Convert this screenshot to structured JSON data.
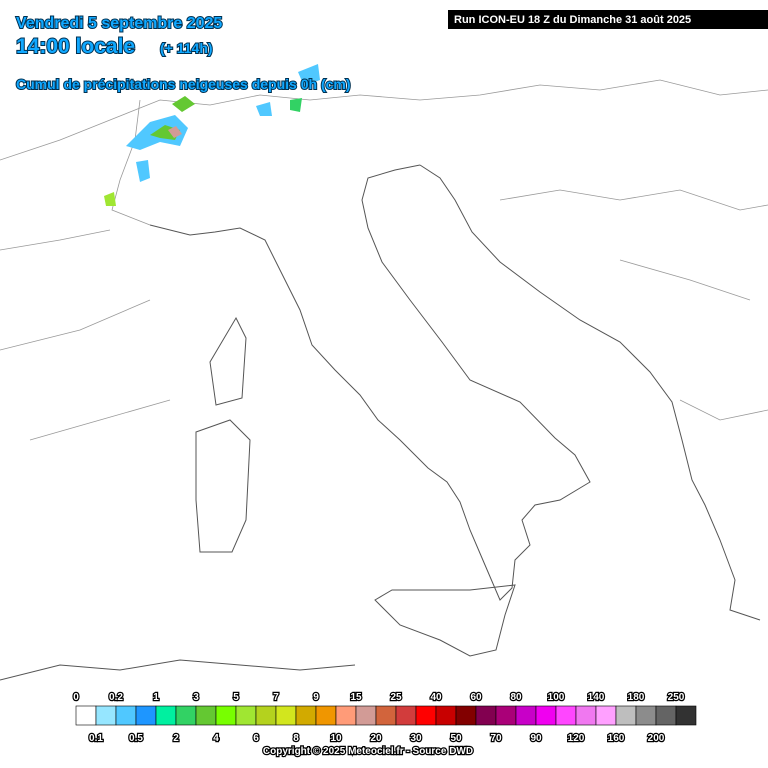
{
  "header": {
    "date": "Vendredi 5 septembre 2025",
    "time": "14:00 locale",
    "lead": "(+ 114h)",
    "field": "Cumul de précipitations neigeuses depuis 0h (cm)",
    "run": "Run ICON-EU 18 Z du Dimanche 31 août 2025"
  },
  "legend": {
    "ticks": [
      0,
      0.1,
      0.2,
      0.5,
      1,
      2,
      3,
      4,
      5,
      6,
      7,
      8,
      9,
      10,
      15,
      20,
      25,
      30,
      40,
      50,
      60,
      70,
      80,
      90,
      100,
      120,
      140,
      160,
      180,
      200,
      250
    ],
    "colors": [
      "#ffffff",
      "#96e6ff",
      "#50c8ff",
      "#1e96ff",
      "#00f0a0",
      "#32d264",
      "#64c832",
      "#78ff00",
      "#a0e632",
      "#b4d21e",
      "#d2e61e",
      "#d2aa00",
      "#f09600",
      "#ff9b78",
      "#d29b96",
      "#d2643c",
      "#d23c3c",
      "#ff0000",
      "#c80000",
      "#820000",
      "#820050",
      "#aa0078",
      "#c800c8",
      "#f000f0",
      "#ff46ff",
      "#f078f0",
      "#ffa0ff",
      "#bebebe",
      "#8c8c8c",
      "#646464",
      "#323232"
    ]
  },
  "footer": {
    "copyright": "Copyright © 2025 Meteociel.fr - Source DWD"
  }
}
